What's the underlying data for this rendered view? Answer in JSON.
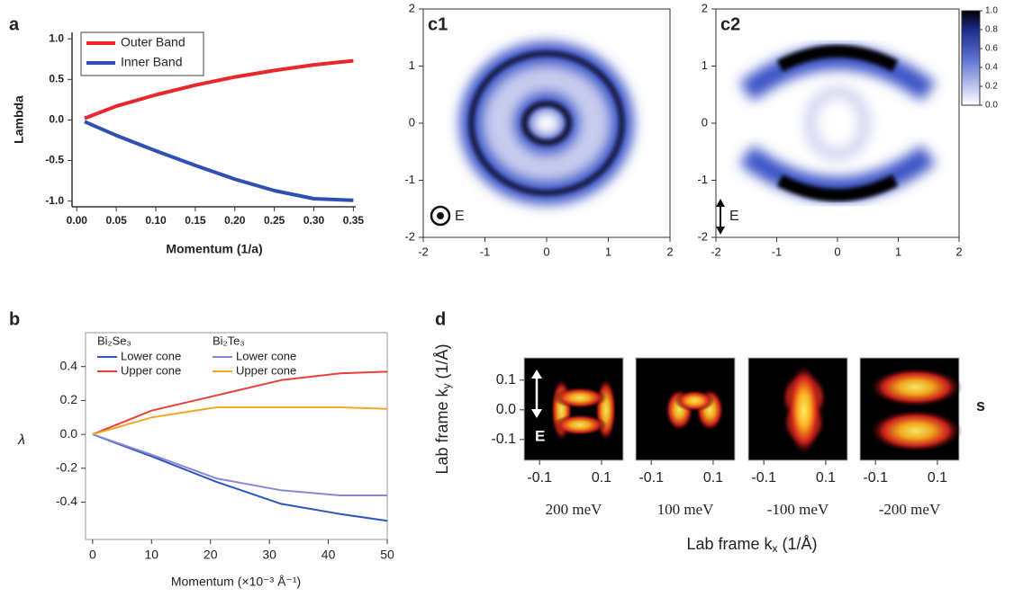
{
  "chart_data": [
    {
      "type": "line",
      "panel": "a",
      "xlabel": "Momentum (1/a)",
      "ylabel": "Lambda",
      "x": [
        0.01,
        0.05,
        0.1,
        0.15,
        0.2,
        0.25,
        0.3,
        0.35
      ],
      "series": [
        {
          "name": "Outer Band",
          "color": "#e8262b",
          "values": [
            0.02,
            0.17,
            0.31,
            0.43,
            0.53,
            0.61,
            0.68,
            0.73
          ]
        },
        {
          "name": "Inner Band",
          "color": "#2f4fb5",
          "values": [
            -0.02,
            -0.19,
            -0.38,
            -0.56,
            -0.73,
            -0.87,
            -0.97,
            -0.99
          ]
        }
      ],
      "xlim": [
        -0.006,
        0.353
      ],
      "ylim": [
        -1.07,
        1.08
      ],
      "xticks": [
        {
          "value": 0,
          "label": "0.00"
        },
        0.05,
        {
          "value": 0.1,
          "label": "0.10"
        },
        0.15,
        {
          "value": 0.2,
          "label": "0.20"
        },
        0.25,
        {
          "value": 0.3,
          "label": "0.30"
        },
        0.35
      ],
      "yticks": [
        {
          "value": 1,
          "label": "1.0"
        },
        0.5,
        {
          "value": 0,
          "label": "0.0"
        },
        -0.5,
        {
          "value": -1,
          "label": "-1.0"
        }
      ],
      "legend": "upper left"
    },
    {
      "type": "line",
      "panel": "b",
      "xlabel": "Momentum (×10⁻³ Å⁻¹)",
      "ylabel": "λ",
      "x": [
        0,
        10,
        21,
        32,
        42,
        50
      ],
      "series": [
        {
          "group": "Bi₂Se₃",
          "name": "Lower cone",
          "color": "#2f55c0",
          "values": [
            0,
            -0.13,
            -0.28,
            -0.41,
            -0.47,
            -0.51
          ]
        },
        {
          "group": "Bi₂Se₃",
          "name": "Upper cone",
          "color": "#e8403a",
          "values": [
            0,
            0.14,
            0.23,
            0.32,
            0.36,
            0.37
          ]
        },
        {
          "group": "Bi₂Te₃",
          "name": "Lower cone",
          "color": "#8a86d6",
          "values": [
            0,
            -0.12,
            -0.26,
            -0.33,
            -0.36,
            -0.36
          ]
        },
        {
          "group": "Bi₂Te₃",
          "name": "Upper cone",
          "color": "#f5a623",
          "values": [
            0,
            0.1,
            0.16,
            0.16,
            0.16,
            0.15
          ]
        }
      ],
      "xlim": [
        -1.2,
        50
      ],
      "ylim": [
        -0.62,
        0.6
      ],
      "xticks": [
        0,
        10,
        20,
        30,
        40,
        50
      ],
      "yticks": [
        0.4,
        0.2,
        {
          "value": 0,
          "label": "0.0"
        },
        -0.2,
        -0.4
      ],
      "legend": "upper left"
    },
    {
      "type": "image",
      "panel": "c1",
      "annotation": "E",
      "xlim": [
        -2,
        2
      ],
      "ylim": [
        -2,
        2
      ],
      "xticks": [
        -2,
        -1,
        0,
        1,
        2
      ],
      "yticks": [
        -2,
        -1,
        0,
        1,
        2
      ]
    },
    {
      "type": "image",
      "panel": "c2",
      "annotation": "E",
      "xlim": [
        -2,
        2
      ],
      "ylim": [
        -2,
        2
      ],
      "xticks": [
        -2,
        -1,
        0,
        1,
        2
      ],
      "yticks": [
        -2,
        -1,
        0,
        1,
        2
      ],
      "colorbar": {
        "lim": [
          0,
          1
        ],
        "ticks": [
          {
            "value": 0,
            "label": "0.0"
          },
          0.2,
          0.4,
          0.6,
          0.8,
          {
            "value": 1,
            "label": "1.0"
          }
        ]
      }
    },
    {
      "type": "image",
      "panel": "d",
      "annotation": "E",
      "side_label": "s",
      "xlabel": {
        "text": "Lab frame k",
        "sub": "x",
        "unit": "(1/Å)"
      },
      "ylabel": {
        "text": "Lab frame k",
        "sub": "y",
        "unit": "(1/Å)"
      },
      "subplots": [
        "200 meV",
        "100 meV",
        "-100 meV",
        "-200 meV"
      ],
      "xlim": [
        -0.15,
        0.17
      ],
      "ylim": [
        -0.17,
        0.175
      ],
      "xticks": [
        -0.1,
        0.1
      ],
      "yticks": [
        0.1,
        {
          "value": 0,
          "label": "0.0"
        },
        -0.1
      ]
    }
  ]
}
